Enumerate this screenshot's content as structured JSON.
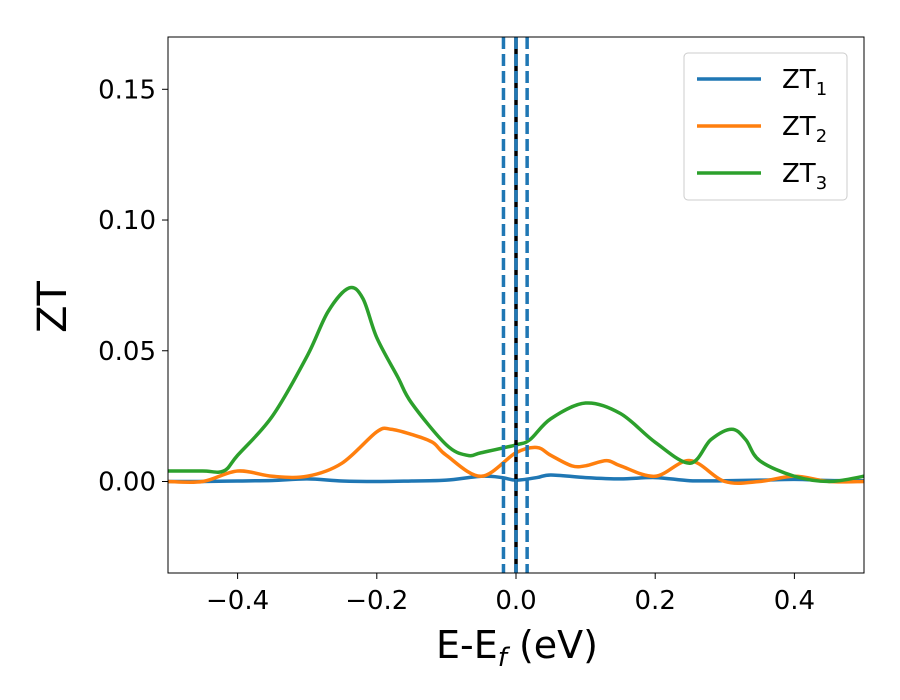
{
  "chart_data": {
    "type": "line",
    "xlabel": "E-E",
    "xlabel_sub": "f",
    "xlabel_unit": " (eV)",
    "ylabel": "ZT",
    "xlim": [
      -0.5,
      0.5
    ],
    "ylim": [
      -0.035,
      0.17
    ],
    "xticks": [
      -0.4,
      -0.2,
      0.0,
      0.2,
      0.4
    ],
    "xtick_labels": [
      "−0.4",
      "−0.2",
      "0.0",
      "0.2",
      "0.4"
    ],
    "yticks": [
      0.0,
      0.05,
      0.1,
      0.15
    ],
    "ytick_labels": [
      "0.00",
      "0.05",
      "0.10",
      "0.15"
    ],
    "grid": false,
    "legend_position": "top-right",
    "vlines": [
      {
        "x": -0.018,
        "color": "#1f77b4",
        "style": "dashed"
      },
      {
        "x": 0.0,
        "color": "#000000",
        "style": "solid"
      },
      {
        "x": 0.0,
        "color": "#1f77b4",
        "style": "dashed"
      },
      {
        "x": 0.016,
        "color": "#1f77b4",
        "style": "dashed"
      }
    ],
    "series": [
      {
        "name": "ZT",
        "sub": "1",
        "color": "#1f77b4",
        "x": [
          -0.5,
          -0.45,
          -0.4,
          -0.35,
          -0.3,
          -0.25,
          -0.2,
          -0.15,
          -0.1,
          -0.05,
          -0.02,
          0.0,
          0.03,
          0.05,
          0.1,
          0.15,
          0.2,
          0.25,
          0.3,
          0.35,
          0.4,
          0.45,
          0.5
        ],
        "y": [
          0.0,
          0.0,
          0.0002,
          0.0004,
          0.001,
          0.0002,
          0.0,
          0.0002,
          0.0005,
          0.002,
          0.0015,
          0.0005,
          0.0015,
          0.0025,
          0.0015,
          0.001,
          0.0015,
          0.0003,
          0.0003,
          0.0005,
          0.0008,
          0.0004,
          0.0003
        ]
      },
      {
        "name": "ZT",
        "sub": "2",
        "color": "#ff7f0e",
        "x": [
          -0.5,
          -0.45,
          -0.4,
          -0.35,
          -0.3,
          -0.25,
          -0.2,
          -0.18,
          -0.15,
          -0.12,
          -0.1,
          -0.05,
          0.0,
          0.03,
          0.05,
          0.08,
          0.1,
          0.13,
          0.15,
          0.2,
          0.25,
          0.3,
          0.35,
          0.4,
          0.45,
          0.5
        ],
        "y": [
          0.0,
          0.0,
          0.004,
          0.002,
          0.002,
          0.007,
          0.019,
          0.02,
          0.018,
          0.015,
          0.01,
          0.002,
          0.011,
          0.013,
          0.01,
          0.006,
          0.006,
          0.008,
          0.006,
          0.002,
          0.008,
          0.0,
          0.0,
          0.002,
          0.0,
          0.0
        ]
      },
      {
        "name": "ZT",
        "sub": "3",
        "color": "#2ca02c",
        "x": [
          -0.5,
          -0.45,
          -0.42,
          -0.4,
          -0.35,
          -0.3,
          -0.27,
          -0.24,
          -0.22,
          -0.2,
          -0.17,
          -0.15,
          -0.1,
          -0.07,
          -0.05,
          0.0,
          0.02,
          0.05,
          0.1,
          0.15,
          0.2,
          0.25,
          0.28,
          0.31,
          0.33,
          0.35,
          0.4,
          0.45,
          0.5
        ],
        "y": [
          0.004,
          0.004,
          0.004,
          0.01,
          0.025,
          0.048,
          0.065,
          0.074,
          0.07,
          0.055,
          0.04,
          0.03,
          0.014,
          0.01,
          0.011,
          0.014,
          0.016,
          0.024,
          0.03,
          0.026,
          0.015,
          0.007,
          0.016,
          0.02,
          0.016,
          0.008,
          0.002,
          0.0,
          0.002
        ]
      }
    ]
  }
}
